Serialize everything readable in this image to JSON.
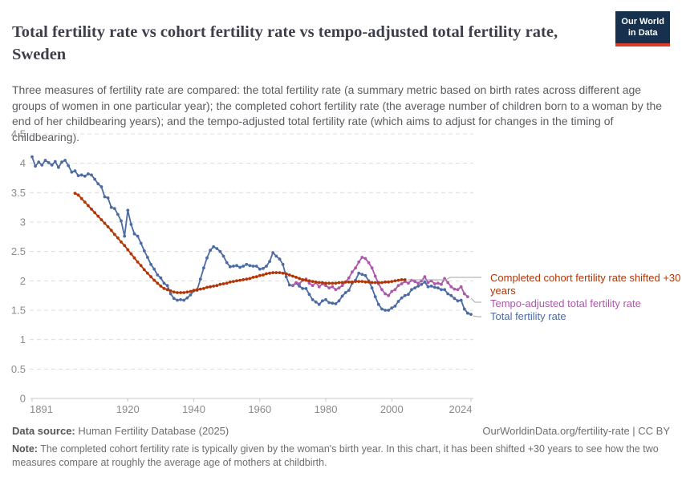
{
  "header": {
    "title": "Total fertility rate vs cohort fertility rate vs tempo-adjusted total fertility rate, Sweden",
    "subtitle": "Three measures of fertility rate are compared: the total fertility rate (a summary metric based on birth rates across different age groups of women in one particular year); the completed cohort fertility rate (the average number of children born to a woman by the end of her childbearing years); and the tempo-adjusted total fertility rate (which aims to adjust for changes in the timing of childbearing).",
    "logo": {
      "line1": "Our World",
      "line2": "in Data",
      "bg_color": "#16304e",
      "bar_color": "#dc3a2b"
    }
  },
  "legend": {
    "items": [
      {
        "label": "Completed cohort fertility rate shifted +30 years",
        "color": "#b13507"
      },
      {
        "label": "Tempo-adjusted total fertility rate",
        "color": "#ad58ab"
      },
      {
        "label": "Total fertility rate",
        "color": "#4d6ba3"
      }
    ]
  },
  "chart_data": {
    "type": "line",
    "title": "Total fertility rate vs cohort fertility rate vs tempo-adjusted total fertility rate, Sweden",
    "xlabel": "",
    "ylabel": "",
    "x_range": [
      1891,
      2024
    ],
    "ylim": [
      0,
      4.5
    ],
    "x_ticks": [
      1891,
      1920,
      1940,
      1960,
      1980,
      2000,
      2024
    ],
    "y_ticks": [
      0,
      0.5,
      1,
      1.5,
      2,
      2.5,
      3,
      3.5,
      4,
      4.5
    ],
    "grid": "horizontal-dashed",
    "legend_position": "right-of-plot, colored text labels",
    "marker_style": "small dots on every yearly point",
    "series": [
      {
        "name": "Total fertility rate",
        "color": "#4d6ba3",
        "start_year": 1891,
        "values": [
          4.11,
          3.95,
          4.02,
          3.97,
          4.05,
          4.01,
          3.97,
          4.03,
          3.93,
          4.02,
          4.05,
          3.96,
          3.85,
          3.87,
          3.79,
          3.8,
          3.78,
          3.82,
          3.8,
          3.73,
          3.65,
          3.6,
          3.43,
          3.41,
          3.25,
          3.23,
          3.13,
          3.02,
          2.76,
          3.2,
          2.96,
          2.8,
          2.76,
          2.64,
          2.51,
          2.4,
          2.28,
          2.2,
          2.1,
          2.05,
          1.96,
          1.92,
          1.78,
          1.7,
          1.67,
          1.68,
          1.67,
          1.71,
          1.76,
          1.83,
          1.84,
          2.03,
          2.22,
          2.39,
          2.52,
          2.58,
          2.55,
          2.5,
          2.42,
          2.31,
          2.24,
          2.25,
          2.26,
          2.23,
          2.25,
          2.28,
          2.26,
          2.25,
          2.25,
          2.2,
          2.21,
          2.25,
          2.33,
          2.48,
          2.42,
          2.37,
          2.28,
          2.07,
          1.93,
          1.92,
          1.96,
          1.91,
          1.87,
          1.87,
          1.77,
          1.68,
          1.64,
          1.6,
          1.66,
          1.68,
          1.63,
          1.62,
          1.61,
          1.66,
          1.74,
          1.8,
          1.84,
          1.96,
          2.01,
          2.13,
          2.11,
          2.09,
          2.0,
          1.88,
          1.73,
          1.6,
          1.52,
          1.5,
          1.5,
          1.54,
          1.57,
          1.65,
          1.71,
          1.75,
          1.77,
          1.85,
          1.88,
          1.91,
          1.94,
          1.98,
          1.9,
          1.91,
          1.89,
          1.88,
          1.85,
          1.85,
          1.78,
          1.75,
          1.7,
          1.66,
          1.67,
          1.52,
          1.45,
          1.43
        ]
      },
      {
        "name": "Tempo-adjusted total fertility rate",
        "color": "#ad58ab",
        "start_year": 1970,
        "values": [
          1.92,
          1.97,
          1.95,
          2.01,
          2.03,
          1.96,
          1.92,
          1.97,
          1.9,
          1.95,
          1.92,
          1.88,
          1.9,
          1.85,
          1.88,
          1.92,
          1.98,
          2.05,
          2.15,
          2.22,
          2.32,
          2.4,
          2.38,
          2.31,
          2.22,
          2.08,
          1.95,
          1.85,
          1.78,
          1.75,
          1.82,
          1.85,
          1.92,
          1.95,
          1.99,
          1.96,
          2.01,
          1.99,
          1.96,
          2.0,
          2.07,
          1.97,
          2.0,
          1.95,
          1.96,
          1.94,
          2.04,
          1.97,
          1.9,
          1.86,
          1.85,
          1.9,
          1.78,
          1.73
        ]
      },
      {
        "name": "Completed cohort fertility rate shifted +30 years",
        "color": "#b13507",
        "start_year": 1904,
        "values": [
          3.49,
          3.46,
          3.4,
          3.34,
          3.28,
          3.22,
          3.16,
          3.1,
          3.04,
          2.98,
          2.92,
          2.86,
          2.79,
          2.73,
          2.66,
          2.6,
          2.53,
          2.46,
          2.39,
          2.32,
          2.26,
          2.19,
          2.13,
          2.07,
          2.01,
          1.96,
          1.91,
          1.87,
          1.85,
          1.83,
          1.81,
          1.8,
          1.8,
          1.8,
          1.81,
          1.82,
          1.84,
          1.85,
          1.86,
          1.87,
          1.89,
          1.9,
          1.91,
          1.92,
          1.94,
          1.95,
          1.96,
          1.98,
          1.99,
          2.0,
          2.01,
          2.02,
          2.03,
          2.04,
          2.06,
          2.07,
          2.09,
          2.1,
          2.12,
          2.13,
          2.14,
          2.14,
          2.14,
          2.13,
          2.12,
          2.1,
          2.08,
          2.06,
          2.04,
          2.02,
          2.01,
          2.0,
          1.99,
          1.98,
          1.97,
          1.97,
          1.96,
          1.96,
          1.96,
          1.96,
          1.97,
          1.97,
          1.98,
          1.98,
          1.98,
          1.99,
          1.99,
          1.99,
          1.98,
          1.98,
          1.97,
          1.97,
          1.97,
          1.97,
          1.98,
          1.98,
          1.99,
          2.0,
          2.01,
          2.02,
          2.02
        ]
      }
    ]
  },
  "footer": {
    "datasource_label": "Data source:",
    "datasource_value": "Human Fertility Database (2025)",
    "link": "OurWorldinData.org/fertility-rate | CC BY",
    "note_label": "Note:",
    "note_text": "The completed cohort fertility rate is typically given by the woman's birth year. In this chart, it has been shifted +30 years to see how the two measures compare at roughly the average age of mothers at childbirth."
  }
}
